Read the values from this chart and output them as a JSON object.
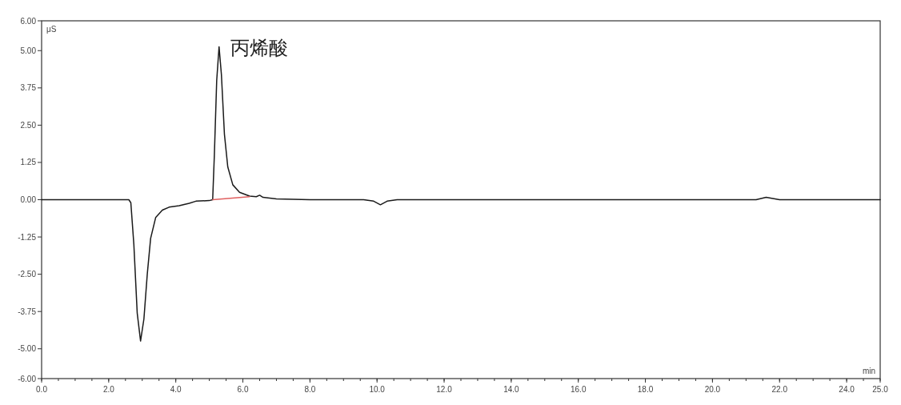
{
  "chart_data": {
    "type": "line",
    "xlabel": "min",
    "ylabel": "μS",
    "xlim": [
      0,
      25
    ],
    "ylim": [
      -6,
      6
    ],
    "xticks": [
      {
        "value": 0,
        "label": "0.0"
      },
      {
        "value": 2,
        "label": "2.0"
      },
      {
        "value": 4,
        "label": "4.0"
      },
      {
        "value": 6,
        "label": "6.0"
      },
      {
        "value": 8,
        "label": "8.0"
      },
      {
        "value": 10,
        "label": "10.0"
      },
      {
        "value": 12,
        "label": "12.0"
      },
      {
        "value": 14,
        "label": "14.0"
      },
      {
        "value": 16,
        "label": "16.0"
      },
      {
        "value": 18,
        "label": "18.0"
      },
      {
        "value": 20,
        "label": "20.0"
      },
      {
        "value": 22,
        "label": "22.0"
      },
      {
        "value": 24,
        "label": "24.0"
      },
      {
        "value": 25,
        "label": "25.0"
      }
    ],
    "yticks": [
      {
        "value": -6,
        "label": "-6.00"
      },
      {
        "value": -5,
        "label": "-5.00"
      },
      {
        "value": -3.75,
        "label": "-3.75"
      },
      {
        "value": -2.5,
        "label": "-2.50"
      },
      {
        "value": -1.25,
        "label": "-1.25"
      },
      {
        "value": 0,
        "label": "0.00"
      },
      {
        "value": 1.25,
        "label": "1.25"
      },
      {
        "value": 2.5,
        "label": "2.50"
      },
      {
        "value": 3.75,
        "label": "3.75"
      },
      {
        "value": 5,
        "label": "5.00"
      },
      {
        "value": 6,
        "label": "6.00"
      }
    ],
    "series": [
      {
        "color": "#1a1a1a",
        "x": [
          0,
          2.6,
          2.66,
          2.75,
          2.85,
          2.95,
          3.05,
          3.15,
          3.25,
          3.4,
          3.6,
          3.8,
          4.1,
          4.4,
          4.6,
          5.0,
          5.1,
          5.15,
          5.22,
          5.29,
          5.36,
          5.45,
          5.55,
          5.7,
          5.9,
          6.2,
          6.4,
          6.5,
          6.6,
          7.0,
          8.0,
          9.6,
          9.9,
          10.1,
          10.3,
          10.6,
          15.0,
          21.3,
          21.6,
          22.0,
          25.0
        ],
        "values": [
          0,
          0,
          -0.1,
          -1.5,
          -3.8,
          -4.74,
          -4.0,
          -2.5,
          -1.3,
          -0.6,
          -0.35,
          -0.25,
          -0.2,
          -0.12,
          -0.05,
          -0.03,
          0.0,
          1.5,
          4.0,
          5.13,
          4.2,
          2.2,
          1.1,
          0.5,
          0.25,
          0.12,
          0.1,
          0.15,
          0.08,
          0.03,
          0,
          0,
          -0.05,
          -0.17,
          -0.05,
          0,
          0,
          0,
          0.08,
          0,
          0
        ]
      },
      {
        "color": "#e06060",
        "x": [
          5.1,
          6.2
        ],
        "values": [
          0.0,
          0.1
        ]
      }
    ],
    "annotations": [
      {
        "text": "丙烯酸",
        "x": 5.29,
        "y": 5.13
      }
    ]
  }
}
